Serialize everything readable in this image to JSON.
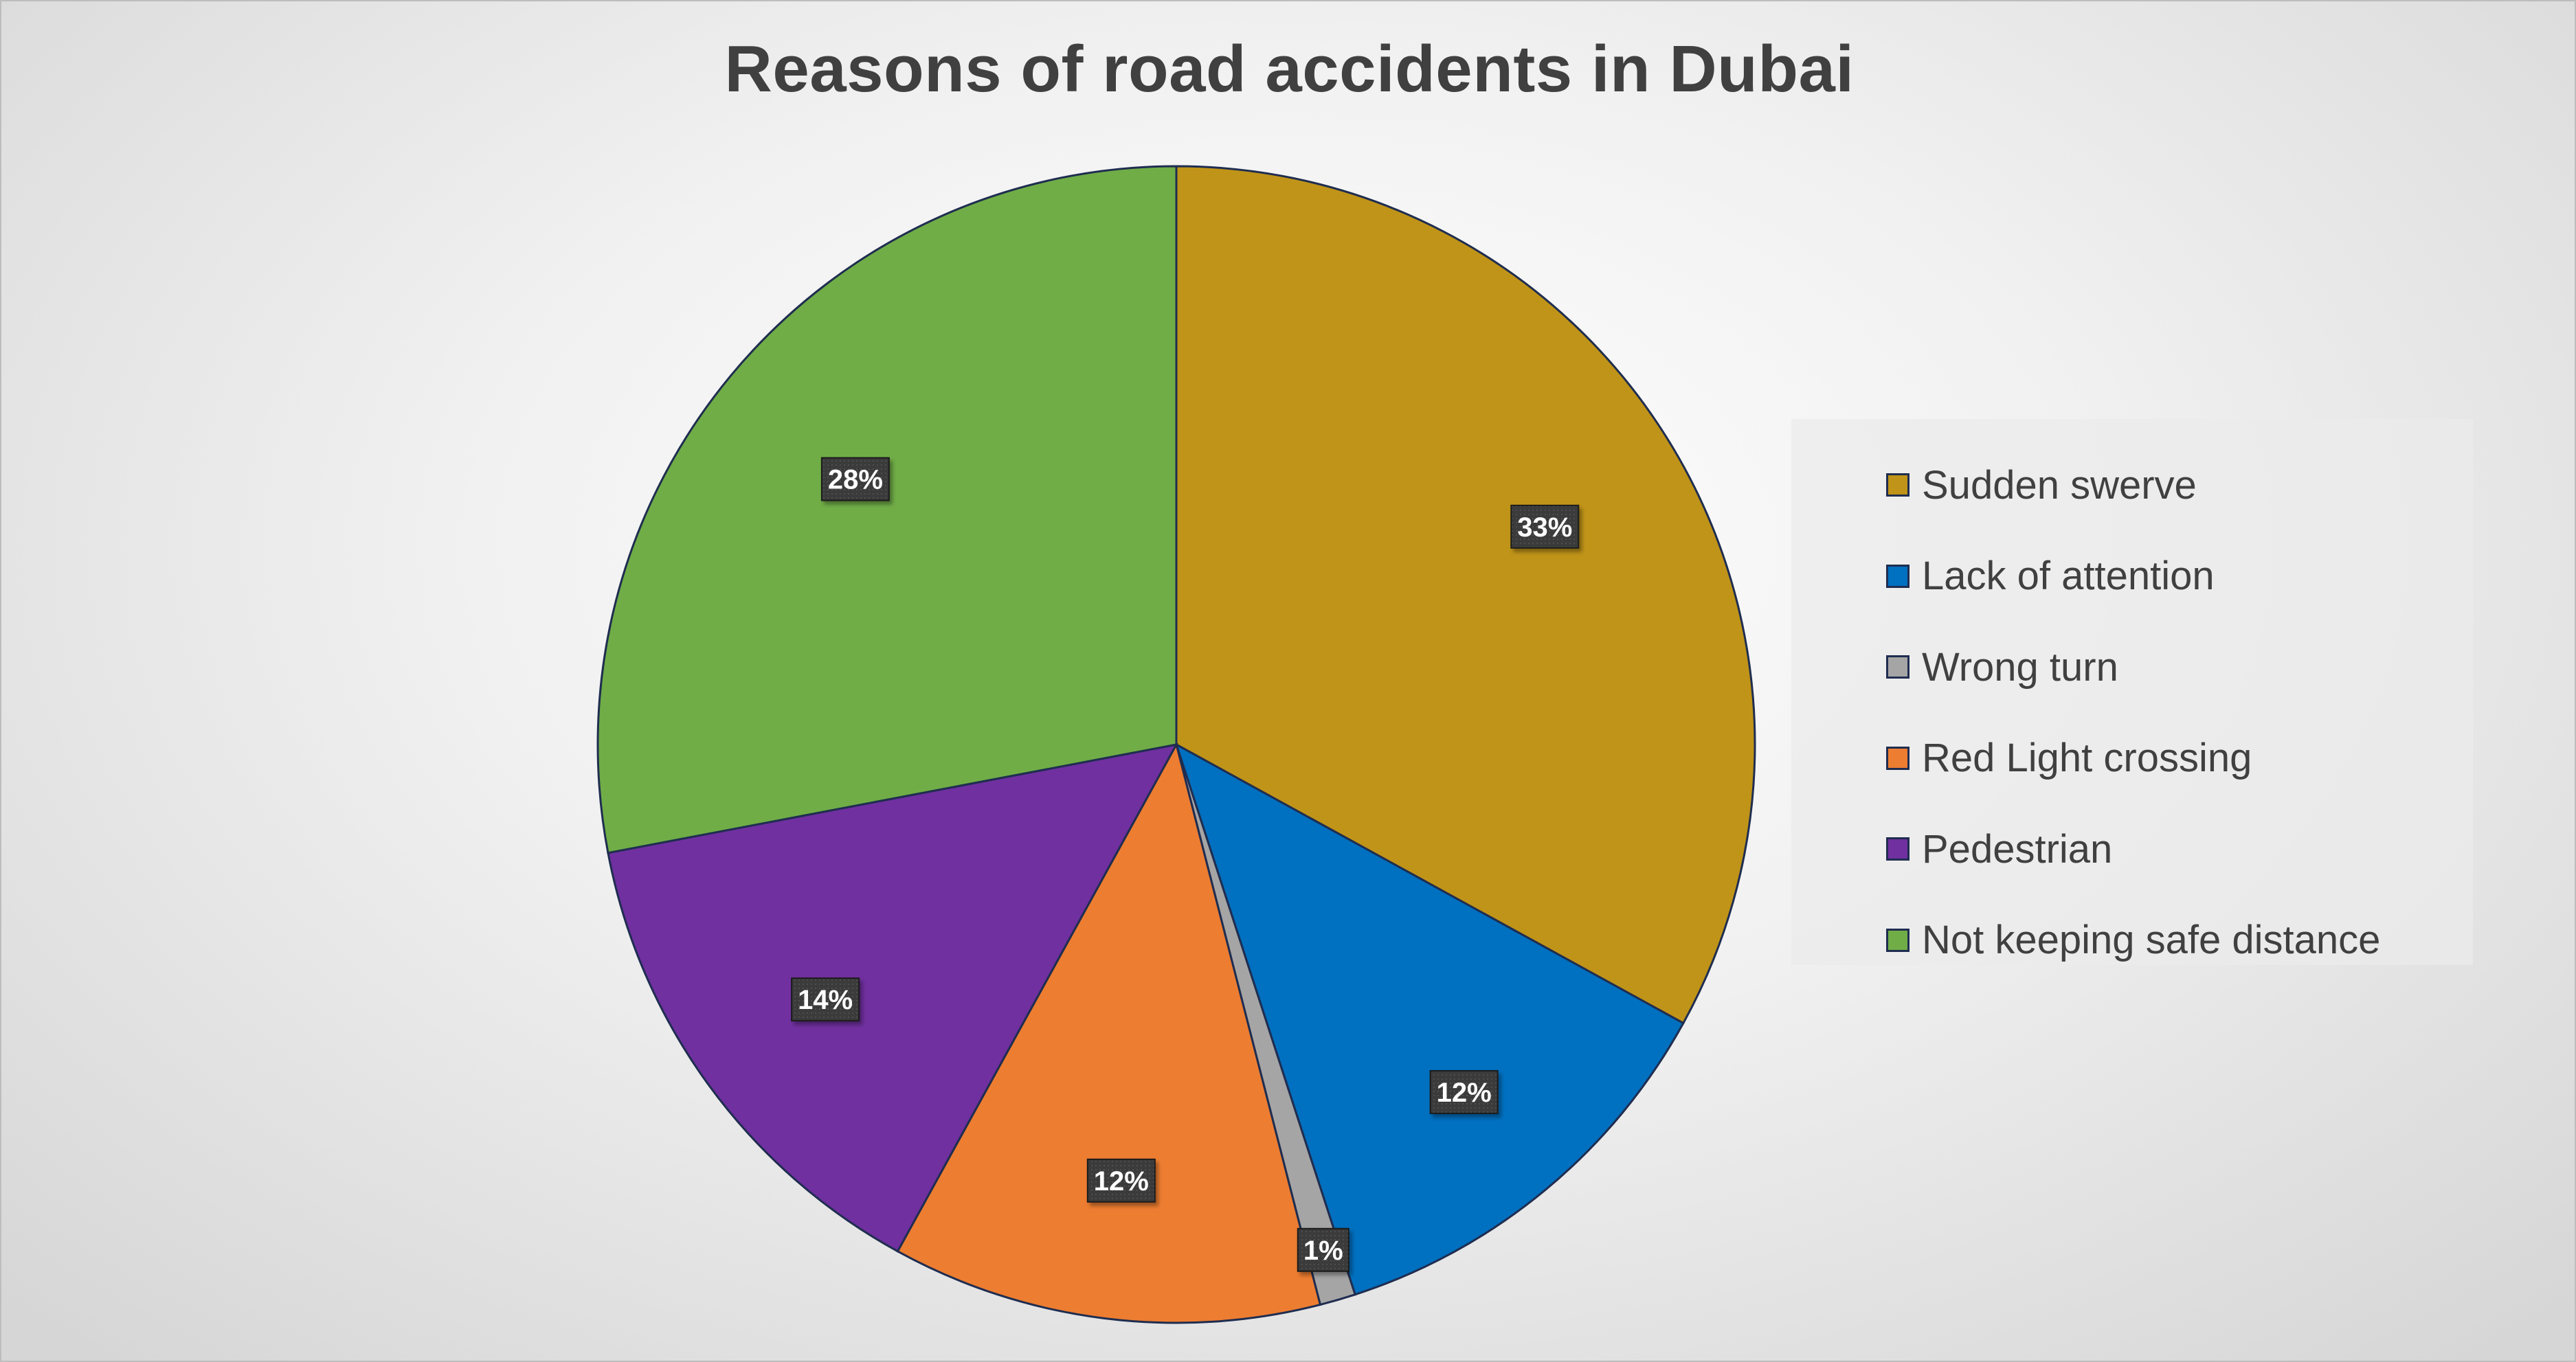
{
  "chart_data": {
    "type": "pie",
    "title": "Reasons of road accidents in Dubai",
    "categories": [
      "Sudden swerve",
      "Lack of attention",
      "Wrong turn",
      "Red Light crossing",
      "Pedestrian",
      "Not keeping safe distance"
    ],
    "values": [
      33,
      12,
      1,
      12,
      14,
      28
    ],
    "data_labels": [
      "33%",
      "12%",
      "1%",
      "12%",
      "14%",
      "28%"
    ],
    "colors": [
      "#C09418",
      "#0070C0",
      "#A5A5A5",
      "#ED7D31",
      "#7030A0",
      "#70AD47"
    ],
    "start_angle": "12 o'clock",
    "direction": "clockwise",
    "legend_position": "right"
  }
}
